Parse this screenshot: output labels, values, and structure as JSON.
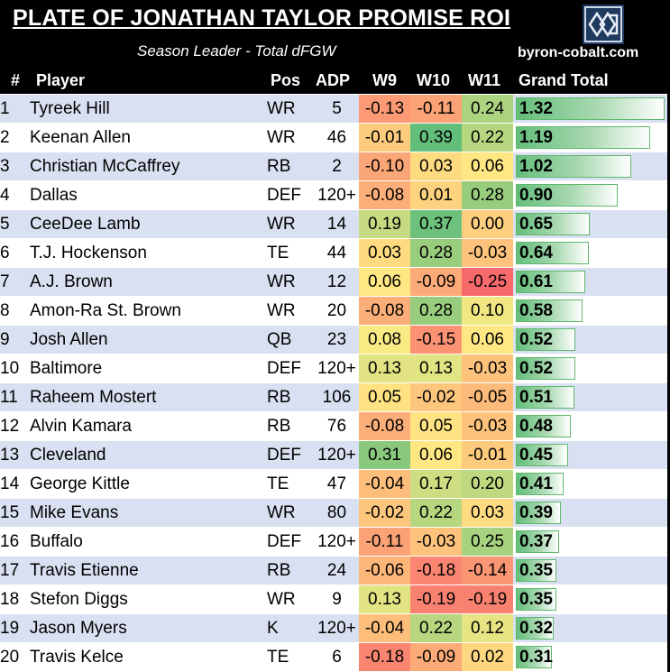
{
  "header": {
    "title": "PLATE OF JONATHAN TAYLOR PROMISE ROI",
    "subtitle": "Season Leader - Total dFGW",
    "site": "byron-cobalt.com"
  },
  "columns": {
    "rank": "#",
    "player": "Player",
    "pos": "Pos",
    "adp": "ADP",
    "w9": "W9",
    "w10": "W10",
    "w11": "W11",
    "total": "Grand Total"
  },
  "colors": {
    "positive": "#63be7b",
    "neutral": "#ffeb84",
    "negative": "#f8696b",
    "row_band": "#d9e0f1"
  },
  "chart_data": {
    "type": "table",
    "title": "PLATE OF JONATHAN TAYLOR PROMISE ROI",
    "subtitle": "Season Leader - Total dFGW",
    "columns": [
      "#",
      "Player",
      "Pos",
      "ADP",
      "W9",
      "W10",
      "W11",
      "Grand Total"
    ],
    "rows": [
      {
        "rank": "1",
        "player": "Tyreek Hill",
        "pos": "WR",
        "adp": "5",
        "w9": "-0.13",
        "w10": "-0.11",
        "w11": "0.24",
        "total": "1.32"
      },
      {
        "rank": "2",
        "player": "Keenan Allen",
        "pos": "WR",
        "adp": "46",
        "w9": "-0.01",
        "w10": "0.39",
        "w11": "0.22",
        "total": "1.19"
      },
      {
        "rank": "3",
        "player": "Christian McCaffrey",
        "pos": "RB",
        "adp": "2",
        "w9": "-0.10",
        "w10": "0.03",
        "w11": "0.06",
        "total": "1.02"
      },
      {
        "rank": "4",
        "player": "Dallas",
        "pos": "DEF",
        "adp": "120+",
        "w9": "-0.08",
        "w10": "0.01",
        "w11": "0.28",
        "total": "0.90"
      },
      {
        "rank": "5",
        "player": "CeeDee Lamb",
        "pos": "WR",
        "adp": "14",
        "w9": "0.19",
        "w10": "0.37",
        "w11": "0.00",
        "total": "0.65"
      },
      {
        "rank": "6",
        "player": "T.J. Hockenson",
        "pos": "TE",
        "adp": "44",
        "w9": "0.03",
        "w10": "0.28",
        "w11": "-0.03",
        "total": "0.64"
      },
      {
        "rank": "7",
        "player": "A.J. Brown",
        "pos": "WR",
        "adp": "12",
        "w9": "0.06",
        "w10": "-0.09",
        "w11": "-0.25",
        "total": "0.61"
      },
      {
        "rank": "8",
        "player": "Amon-Ra St. Brown",
        "pos": "WR",
        "adp": "20",
        "w9": "-0.08",
        "w10": "0.28",
        "w11": "0.10",
        "total": "0.58"
      },
      {
        "rank": "9",
        "player": "Josh Allen",
        "pos": "QB",
        "adp": "23",
        "w9": "0.08",
        "w10": "-0.15",
        "w11": "0.06",
        "total": "0.52"
      },
      {
        "rank": "10",
        "player": "Baltimore",
        "pos": "DEF",
        "adp": "120+",
        "w9": "0.13",
        "w10": "0.13",
        "w11": "-0.03",
        "total": "0.52"
      },
      {
        "rank": "11",
        "player": "Raheem Mostert",
        "pos": "RB",
        "adp": "106",
        "w9": "0.05",
        "w10": "-0.02",
        "w11": "-0.05",
        "total": "0.51"
      },
      {
        "rank": "12",
        "player": "Alvin Kamara",
        "pos": "RB",
        "adp": "76",
        "w9": "-0.08",
        "w10": "0.05",
        "w11": "-0.03",
        "total": "0.48"
      },
      {
        "rank": "13",
        "player": "Cleveland",
        "pos": "DEF",
        "adp": "120+",
        "w9": "0.31",
        "w10": "0.06",
        "w11": "-0.01",
        "total": "0.45"
      },
      {
        "rank": "14",
        "player": "George Kittle",
        "pos": "TE",
        "adp": "47",
        "w9": "-0.04",
        "w10": "0.17",
        "w11": "0.20",
        "total": "0.41"
      },
      {
        "rank": "15",
        "player": "Mike Evans",
        "pos": "WR",
        "adp": "80",
        "w9": "-0.02",
        "w10": "0.22",
        "w11": "0.03",
        "total": "0.39"
      },
      {
        "rank": "16",
        "player": "Buffalo",
        "pos": "DEF",
        "adp": "120+",
        "w9": "-0.11",
        "w10": "-0.03",
        "w11": "0.25",
        "total": "0.37"
      },
      {
        "rank": "17",
        "player": "Travis Etienne",
        "pos": "RB",
        "adp": "24",
        "w9": "-0.06",
        "w10": "-0.18",
        "w11": "-0.14",
        "total": "0.35"
      },
      {
        "rank": "18",
        "player": "Stefon Diggs",
        "pos": "WR",
        "adp": "9",
        "w9": "0.13",
        "w10": "-0.19",
        "w11": "-0.19",
        "total": "0.35"
      },
      {
        "rank": "19",
        "player": "Jason Myers",
        "pos": "K",
        "adp": "120+",
        "w9": "-0.04",
        "w10": "0.22",
        "w11": "0.12",
        "total": "0.32"
      },
      {
        "rank": "20",
        "player": "Travis Kelce",
        "pos": "TE",
        "adp": "6",
        "w9": "-0.18",
        "w10": "-0.09",
        "w11": "0.02",
        "total": "0.31"
      }
    ]
  }
}
